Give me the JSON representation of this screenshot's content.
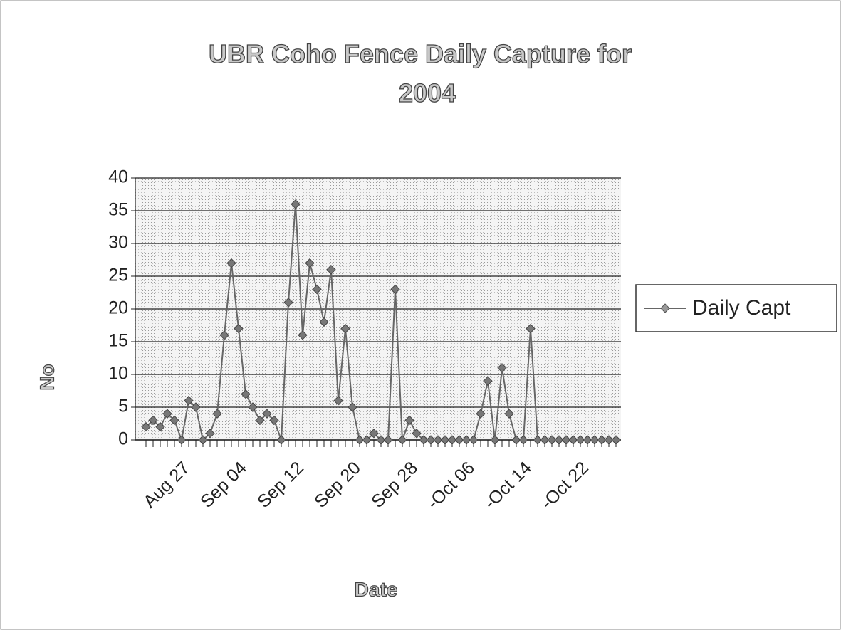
{
  "chart_data": {
    "type": "line",
    "title": "UBR Coho Fence Daily Capture for 2004",
    "x_label": "Date",
    "y_label": "No",
    "categories": [
      null,
      null,
      null,
      null,
      null,
      "Aug 27",
      null,
      null,
      null,
      null,
      null,
      null,
      null,
      "Sep 04",
      null,
      null,
      null,
      null,
      null,
      null,
      null,
      "Sep 12",
      null,
      null,
      null,
      null,
      null,
      null,
      null,
      "Sep 20",
      null,
      null,
      null,
      null,
      null,
      null,
      null,
      "Sep 28",
      null,
      null,
      null,
      null,
      null,
      null,
      null,
      "-Oct 06",
      null,
      null,
      null,
      null,
      null,
      null,
      null,
      "-Oct 14",
      null,
      null,
      null,
      null,
      null,
      null,
      null,
      "-Oct 22",
      null,
      null,
      null,
      null,
      null
    ],
    "series": [
      {
        "name": "Daily Capt",
        "color": "#666666",
        "values": [
          2,
          3,
          2,
          4,
          3,
          0,
          6,
          5,
          0,
          1,
          4,
          16,
          27,
          17,
          7,
          5,
          3,
          4,
          3,
          0,
          21,
          36,
          16,
          27,
          23,
          18,
          26,
          6,
          17,
          5,
          0,
          0,
          1,
          0,
          0,
          23,
          0,
          3,
          1,
          0,
          0,
          0,
          0,
          0,
          0,
          0,
          0,
          4,
          9,
          0,
          11,
          4,
          0,
          0,
          17,
          0,
          0,
          0,
          0,
          0,
          0,
          0,
          0,
          0,
          0,
          0,
          0
        ]
      }
    ],
    "ylim": [
      0,
      40
    ],
    "yticks": [
      0,
      5,
      10,
      15,
      20,
      25,
      30,
      35,
      40
    ],
    "grid": true,
    "legend": "right"
  }
}
